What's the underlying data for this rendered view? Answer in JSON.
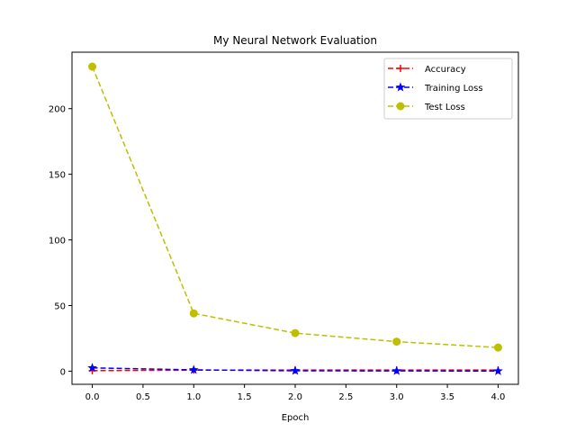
{
  "chart_data": {
    "type": "line",
    "title": "My Neural Network Evaluation",
    "xlabel": "Epoch",
    "ylabel": "",
    "xlim": [
      -0.2,
      4.2
    ],
    "ylim": [
      -10,
      243
    ],
    "xticks": [
      0.0,
      0.5,
      1.0,
      1.5,
      2.0,
      2.5,
      3.0,
      3.5,
      4.0
    ],
    "xtick_labels": [
      "0.0",
      "0.5",
      "1.0",
      "1.5",
      "2.0",
      "2.5",
      "3.0",
      "3.5",
      "4.0"
    ],
    "yticks": [
      0,
      50,
      100,
      150,
      200
    ],
    "ytick_labels": [
      "0",
      "50",
      "100",
      "150",
      "200"
    ],
    "grid": false,
    "legend_position": "top-right",
    "series": [
      {
        "name": "Accuracy",
        "color": "#ff0000",
        "marker": "plus",
        "linestyle": "dashed",
        "x": [
          0,
          1,
          2,
          3,
          4
        ],
        "y": [
          0.4,
          0.8,
          0.9,
          0.9,
          0.9
        ]
      },
      {
        "name": "Training Loss",
        "color": "#0000ff",
        "marker": "star",
        "linestyle": "dashed",
        "x": [
          0,
          1,
          2,
          3,
          4
        ],
        "y": [
          2.5,
          1.0,
          0.3,
          0.2,
          0.1
        ]
      },
      {
        "name": "Test Loss",
        "color": "#bfbf00",
        "marker": "circle",
        "linestyle": "dashed",
        "x": [
          0,
          1,
          2,
          3,
          4
        ],
        "y": [
          232,
          44,
          29,
          22.5,
          18
        ]
      }
    ]
  }
}
